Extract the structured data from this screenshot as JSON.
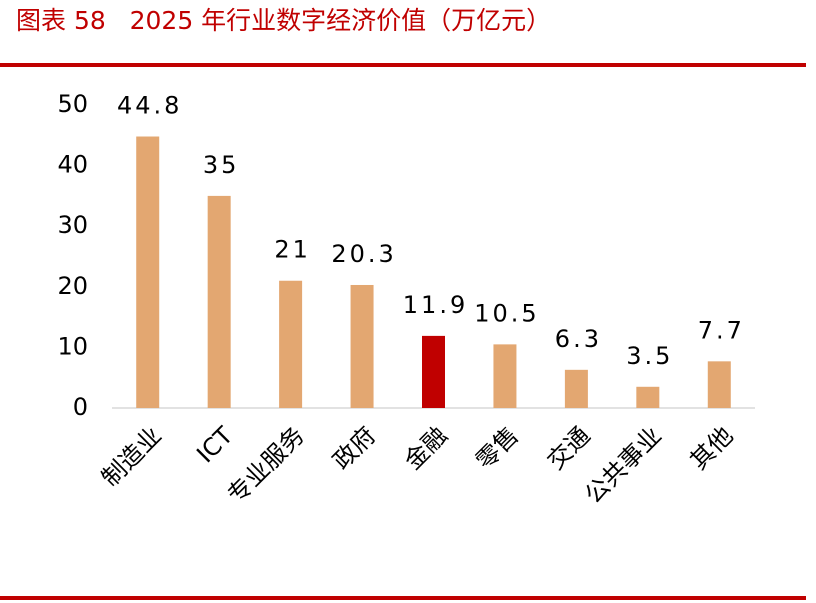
{
  "chart_data": {
    "type": "bar",
    "title": "图表 58   2025 年行业数字经济价值（万亿元）",
    "categories": [
      "制造业",
      "ICT",
      "专业服务",
      "政府",
      "金融",
      "零售",
      "交通",
      "公共事业",
      "其他"
    ],
    "values": [
      44.8,
      35,
      21,
      20.3,
      11.9,
      10.5,
      6.3,
      3.5,
      7.7
    ],
    "colors": [
      "#e3a771",
      "#e3a771",
      "#e3a771",
      "#e3a771",
      "#c00000",
      "#e3a771",
      "#e3a771",
      "#e3a771",
      "#e3a771"
    ],
    "ylim": [
      0,
      50
    ],
    "yticks": [
      0,
      10,
      20,
      30,
      40,
      50
    ],
    "grid": false
  }
}
